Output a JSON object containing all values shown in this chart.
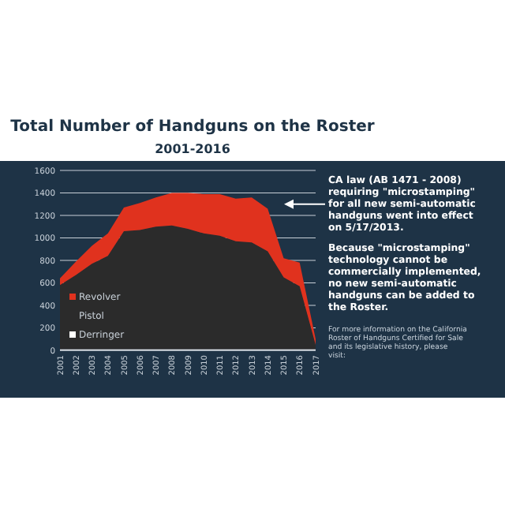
{
  "chart_data": {
    "type": "area",
    "stacked": true,
    "title": "Total Number of Handguns on the Roster",
    "subtitle": "2001-2016",
    "categories": [
      "2001",
      "2002",
      "2003",
      "2004",
      "2005",
      "2006",
      "2007",
      "2008",
      "2009",
      "2010",
      "2011",
      "2012",
      "2013",
      "2014",
      "2015",
      "2016",
      "2017"
    ],
    "series": [
      {
        "name": "Derringer",
        "color": "#ffffff",
        "values": [
          10,
          10,
          10,
          10,
          10,
          10,
          10,
          10,
          10,
          10,
          10,
          10,
          10,
          10,
          10,
          10,
          10
        ]
      },
      {
        "name": "Pistol",
        "color": "#2b2b2b",
        "values": [
          570,
          660,
          760,
          830,
          1050,
          1060,
          1090,
          1100,
          1070,
          1030,
          1010,
          960,
          950,
          870,
          640,
          560,
          40
        ]
      },
      {
        "name": "Revolver",
        "color": "#e0321e",
        "values": [
          60,
          120,
          160,
          200,
          210,
          240,
          260,
          290,
          320,
          350,
          370,
          380,
          400,
          380,
          170,
          210,
          50
        ]
      }
    ],
    "ylim": [
      0,
      1600
    ],
    "yticks": [
      0,
      200,
      400,
      600,
      800,
      1000,
      1200,
      1400,
      1600
    ],
    "grid": "y",
    "legend": "bottom left",
    "annotations": [
      "CA law (AB 1471 - 2008) requiring \"microstamping\" for all new semi-automatic handguns went into effect on 5/17/2013.",
      "Because \"microstamping\" technology cannot be commercially implemented, no new semi-automatic handguns can be added to the Roster.",
      "For more information on the California Roster of Handguns Certified for Sale and its legislative history, please visit:"
    ]
  }
}
